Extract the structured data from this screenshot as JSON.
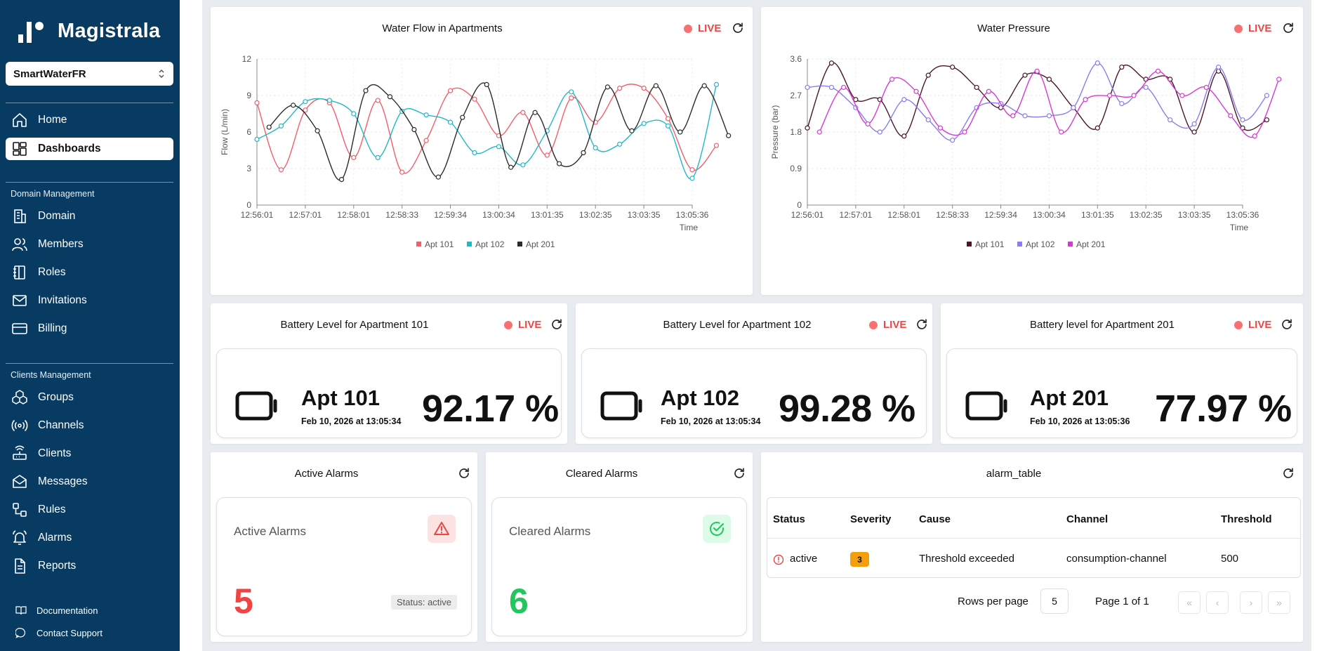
{
  "app": {
    "name": "Magistrala"
  },
  "domain": {
    "selected": "SmartWaterFR"
  },
  "nav": {
    "home": "Home",
    "dashboards": "Dashboards",
    "domain_section": "Domain Management",
    "domain": "Domain",
    "members": "Members",
    "roles": "Roles",
    "invitations": "Invitations",
    "billing": "Billing",
    "clients_section": "Clients Management",
    "groups": "Groups",
    "channels": "Channels",
    "clients": "Clients",
    "messages": "Messages",
    "rules": "Rules",
    "alarms": "Alarms",
    "reports": "Reports",
    "documentation": "Documentation",
    "contact_support": "Contact Support"
  },
  "live_label": "LIVE",
  "colors": {
    "sidebar": "#073b62",
    "live": "#ef4444",
    "active_alarm": "#ef4444",
    "cleared_alarm": "#22c55e",
    "severity": "#f59e0b"
  },
  "flow_chart": {
    "title": "Water Flow in Apartments"
  },
  "pressure_chart": {
    "title": "Water Pressure"
  },
  "chart_data": [
    {
      "type": "line",
      "title": "Water Flow in Apartments",
      "xlabel": "Time",
      "ylabel": "Flow (L/min)",
      "ylim": [
        0,
        12
      ],
      "yticks": [
        0,
        3,
        6,
        9,
        12
      ],
      "xtick_labels": [
        "12:56:01",
        "12:57:01",
        "12:58:01",
        "12:58:33",
        "12:59:34",
        "13:00:34",
        "13:01:35",
        "13:02:35",
        "13:03:35",
        "13:05:36"
      ],
      "legend_position": "bottom",
      "series": [
        {
          "name": "Apt 101",
          "color": "#f15e6c",
          "points": [
            [
              0,
              8.4
            ],
            [
              0.5,
              2.9
            ],
            [
              1,
              7.8
            ],
            [
              1.5,
              8.4
            ],
            [
              2,
              3.9
            ],
            [
              2.5,
              8.6
            ],
            [
              3,
              2.7
            ],
            [
              3.5,
              5.3
            ],
            [
              4,
              9.4
            ],
            [
              4.5,
              8.7
            ],
            [
              5,
              5.7
            ],
            [
              5.5,
              7.6
            ],
            [
              6,
              4.1
            ],
            [
              6.5,
              8.8
            ],
            [
              7,
              6.8
            ],
            [
              7.5,
              9.6
            ],
            [
              8,
              9.6
            ],
            [
              8.5,
              7.1
            ],
            [
              9,
              2.9
            ],
            [
              9.5,
              4.9
            ]
          ]
        },
        {
          "name": "Apt 102",
          "color": "#22b8c4",
          "points": [
            [
              0,
              5.4
            ],
            [
              0.5,
              6.5
            ],
            [
              1,
              8.5
            ],
            [
              1.5,
              8.6
            ],
            [
              2,
              7.5
            ],
            [
              2.5,
              3.9
            ],
            [
              3,
              7.7
            ],
            [
              3.5,
              7.4
            ],
            [
              4,
              6.8
            ],
            [
              4.5,
              4.3
            ],
            [
              5,
              4.8
            ],
            [
              5.5,
              3.3
            ],
            [
              6,
              6.1
            ],
            [
              6.5,
              9.3
            ],
            [
              7,
              4.7
            ],
            [
              7.5,
              5.0
            ],
            [
              8,
              6.7
            ],
            [
              8.5,
              6.5
            ],
            [
              9,
              2.2
            ],
            [
              9.5,
              9.9
            ]
          ]
        },
        {
          "name": "Apt 201",
          "color": "#2b2b2b",
          "points": [
            [
              0.25,
              6.4
            ],
            [
              0.75,
              8.2
            ],
            [
              1.25,
              6.1
            ],
            [
              1.75,
              2.1
            ],
            [
              2.25,
              9.4
            ],
            [
              2.75,
              8.9
            ],
            [
              3.25,
              6.2
            ],
            [
              3.75,
              2.3
            ],
            [
              4.25,
              7.2
            ],
            [
              4.75,
              9.9
            ],
            [
              5.25,
              3.1
            ],
            [
              5.75,
              7.6
            ],
            [
              6.25,
              3.4
            ],
            [
              6.75,
              4.3
            ],
            [
              7.25,
              9.7
            ],
            [
              7.75,
              6.1
            ],
            [
              8.25,
              9.8
            ],
            [
              8.75,
              6.0
            ],
            [
              9.25,
              9.8
            ],
            [
              9.75,
              5.7
            ]
          ]
        }
      ]
    },
    {
      "type": "line",
      "title": "Water Pressure",
      "xlabel": "Time",
      "ylabel": "Pressure (bar)",
      "ylim": [
        0,
        3.6
      ],
      "yticks": [
        0,
        0.9,
        1.8,
        2.7,
        3.6
      ],
      "xtick_labels": [
        "12:56:01",
        "12:57:01",
        "12:58:01",
        "12:58:33",
        "12:59:34",
        "13:00:34",
        "13:01:35",
        "13:02:35",
        "13:03:35",
        "13:05:36"
      ],
      "legend_position": "bottom",
      "series": [
        {
          "name": "Apt 101",
          "color": "#4a1628",
          "points": [
            [
              0,
              1.9
            ],
            [
              0.5,
              3.5
            ],
            [
              1,
              2.6
            ],
            [
              1.5,
              2.6
            ],
            [
              2,
              1.7
            ],
            [
              2.5,
              3.2
            ],
            [
              3,
              3.4
            ],
            [
              3.5,
              2.9
            ],
            [
              4,
              2.4
            ],
            [
              4.5,
              3.2
            ],
            [
              5,
              3.1
            ],
            [
              5.5,
              2.4
            ],
            [
              6,
              1.9
            ],
            [
              6.5,
              3.4
            ],
            [
              7,
              3.1
            ],
            [
              7.5,
              3.1
            ],
            [
              8,
              1.8
            ],
            [
              8.5,
              3.3
            ],
            [
              9,
              1.9
            ],
            [
              9.5,
              2.1
            ]
          ]
        },
        {
          "name": "Apt 102",
          "color": "#8b7cf0",
          "points": [
            [
              0,
              2.9
            ],
            [
              0.5,
              2.9
            ],
            [
              1,
              2.4
            ],
            [
              1.5,
              1.8
            ],
            [
              2,
              2.6
            ],
            [
              2.5,
              2.1
            ],
            [
              3,
              1.6
            ],
            [
              3.5,
              2.4
            ],
            [
              4,
              2.5
            ],
            [
              4.5,
              2.2
            ],
            [
              5,
              2.2
            ],
            [
              5.5,
              2.4
            ],
            [
              6,
              3.5
            ],
            [
              6.5,
              2.5
            ],
            [
              7,
              2.9
            ],
            [
              7.5,
              2.1
            ],
            [
              8,
              2.0
            ],
            [
              8.5,
              3.4
            ],
            [
              9,
              2.1
            ],
            [
              9.5,
              2.7
            ]
          ]
        },
        {
          "name": "Apt 201",
          "color": "#d63bd1",
          "points": [
            [
              0.25,
              1.8
            ],
            [
              0.75,
              2.9
            ],
            [
              1.25,
              2.0
            ],
            [
              1.75,
              3.1
            ],
            [
              2.25,
              2.8
            ],
            [
              2.75,
              1.9
            ],
            [
              3.25,
              1.8
            ],
            [
              3.75,
              2.8
            ],
            [
              4.25,
              2.2
            ],
            [
              4.75,
              3.3
            ],
            [
              5.25,
              1.8
            ],
            [
              5.75,
              2.6
            ],
            [
              6.25,
              2.7
            ],
            [
              6.75,
              2.7
            ],
            [
              7.25,
              3.3
            ],
            [
              7.75,
              2.7
            ],
            [
              8.25,
              2.9
            ],
            [
              8.75,
              2.2
            ],
            [
              9.25,
              1.7
            ],
            [
              9.75,
              3.1
            ]
          ]
        }
      ]
    }
  ],
  "battery": [
    {
      "title": "Battery Level for Apartment 101",
      "apt": "Apt 101",
      "time": "Feb 10, 2026 at 13:05:34",
      "value": "92.17 %"
    },
    {
      "title": "Battery Level for Apartment 102",
      "apt": "Apt 102",
      "time": "Feb 10, 2026 at 13:05:34",
      "value": "99.28 %"
    },
    {
      "title": "Battery level for Apartment 201",
      "apt": "Apt 201",
      "time": "Feb 10, 2026 at 13:05:36",
      "value": "77.97 %"
    }
  ],
  "active_alarms": {
    "title": "Active Alarms",
    "label": "Active Alarms",
    "count": "5",
    "status": "Status: active"
  },
  "cleared_alarms": {
    "title": "Cleared Alarms",
    "label": "Cleared Alarms",
    "count": "6"
  },
  "alarm_table": {
    "title": "alarm_table",
    "columns": [
      "Status",
      "Severity",
      "Cause",
      "Channel",
      "Threshold"
    ],
    "rows": [
      {
        "status": "active",
        "severity": "3",
        "cause": "Threshold exceeded",
        "channel": "consumption-channel",
        "threshold": "500"
      }
    ],
    "rows_per_page_label": "Rows per page",
    "rows_per_page": "5",
    "page_info": "Page 1 of 1"
  }
}
